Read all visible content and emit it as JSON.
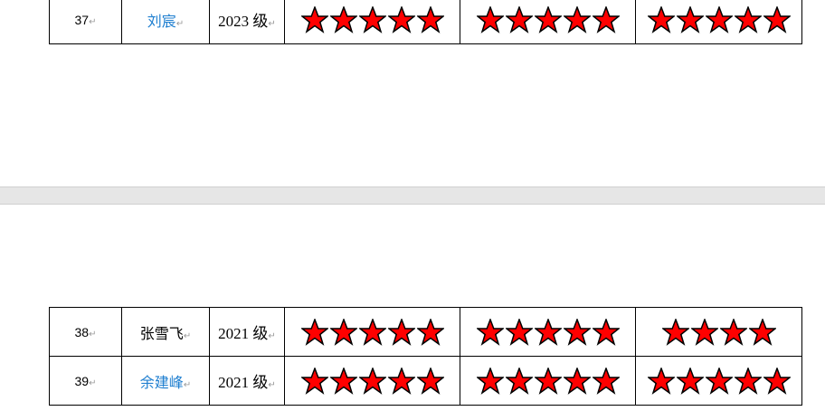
{
  "colors": {
    "star": "#ff0000",
    "link_name": "#1f7fd0"
  },
  "page1": {
    "rows": [
      {
        "no": "37",
        "name": "刘宸",
        "name_blue": true,
        "grade": "2023 级",
        "ratings": [
          5,
          5,
          5
        ]
      }
    ]
  },
  "page2": {
    "rows": [
      {
        "no": "38",
        "name": "张雪飞",
        "name_blue": false,
        "grade": "2021 级",
        "ratings": [
          5,
          5,
          4
        ]
      },
      {
        "no": "39",
        "name": "余建峰",
        "name_blue": true,
        "grade": "2021 级",
        "ratings": [
          5,
          5,
          5
        ]
      }
    ]
  },
  "paragraph_mark": "↵"
}
